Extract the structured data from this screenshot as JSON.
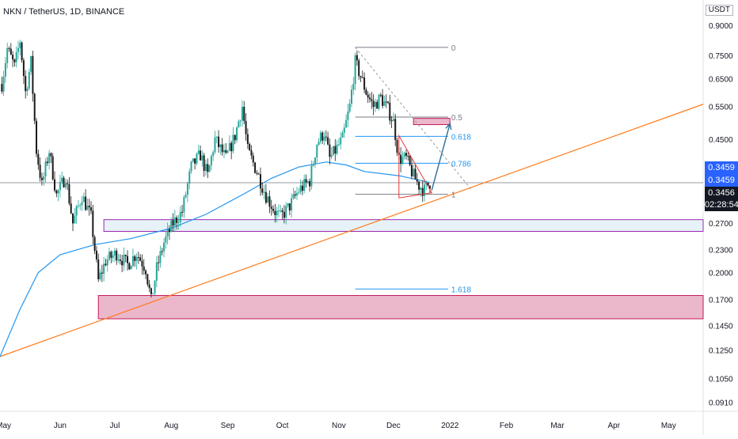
{
  "header": {
    "symbol": "NKN / TetherUS, 1D, BINANCE",
    "unit": "USDT"
  },
  "price_tags": {
    "ma": "0.3459",
    "ma2": "0.3459",
    "last": "0.3456",
    "countdown": "02:28:54"
  },
  "colors": {
    "up": "#26a69a",
    "down": "#000000",
    "candle": "#1a1a1a",
    "ma": "#2196f3",
    "trend": "#ff7a18",
    "fib": "#787b86",
    "fib_blue": "#2196f3",
    "support_zone_fill": "#e6f2f7",
    "support_zone_stroke": "#9c27b0",
    "demand_zone_fill": "#ebb8cb",
    "demand_zone_stroke": "#c2185b",
    "target_fill": "#ebb8cb",
    "arrow": "#2b6f9c",
    "triangle": "#e53935",
    "tag_blue": "#2962ff",
    "tag_black": "#131722"
  },
  "chart_data": {
    "type": "candlestick",
    "title": "NKN / TetherUS, 1D, BINANCE",
    "yscale": "log",
    "ylim": [
      0.086,
      1.05
    ],
    "xlim": [
      "2021-04-29",
      "2022-05-20"
    ],
    "y_ticks": [
      "0.9000",
      "0.7500",
      "0.6500",
      "0.5500",
      "0.4500",
      "0.3459",
      "0.2700",
      "0.2300",
      "0.2000",
      "0.1700",
      "0.1450",
      "0.1250",
      "0.1050",
      "0.0910"
    ],
    "y_tick_values": [
      0.9,
      0.75,
      0.65,
      0.55,
      0.45,
      0.3459,
      0.27,
      0.23,
      0.2,
      0.17,
      0.145,
      0.125,
      0.105,
      0.091
    ],
    "x_ticks": [
      {
        "label": "May",
        "date": "2021-05-01"
      },
      {
        "label": "Jun",
        "date": "2021-06-01"
      },
      {
        "label": "Jul",
        "date": "2021-07-01"
      },
      {
        "label": "Aug",
        "date": "2021-08-01"
      },
      {
        "label": "Sep",
        "date": "2021-09-01"
      },
      {
        "label": "Oct",
        "date": "2021-10-01"
      },
      {
        "label": "Nov",
        "date": "2021-11-01"
      },
      {
        "label": "Dec",
        "date": "2021-12-01"
      },
      {
        "label": "2022",
        "date": "2022-01-01"
      },
      {
        "label": "Feb",
        "date": "2022-02-01"
      },
      {
        "label": "Mar",
        "date": "2022-03-01"
      },
      {
        "label": "Apr",
        "date": "2022-04-01"
      },
      {
        "label": "May",
        "date": "2022-05-01"
      }
    ],
    "price_path": [
      [
        "2021-04-30",
        0.63
      ],
      [
        "2021-05-03",
        0.78
      ],
      [
        "2021-05-07",
        0.7
      ],
      [
        "2021-05-10",
        0.82
      ],
      [
        "2021-05-13",
        0.6
      ],
      [
        "2021-05-16",
        0.72
      ],
      [
        "2021-05-19",
        0.42
      ],
      [
        "2021-05-22",
        0.34
      ],
      [
        "2021-05-26",
        0.42
      ],
      [
        "2021-05-30",
        0.32
      ],
      [
        "2021-06-04",
        0.36
      ],
      [
        "2021-06-08",
        0.27
      ],
      [
        "2021-06-13",
        0.32
      ],
      [
        "2021-06-18",
        0.28
      ],
      [
        "2021-06-22",
        0.19
      ],
      [
        "2021-06-26",
        0.215
      ],
      [
        "2021-07-02",
        0.225
      ],
      [
        "2021-07-08",
        0.21
      ],
      [
        "2021-07-13",
        0.225
      ],
      [
        "2021-07-18",
        0.205
      ],
      [
        "2021-07-21",
        0.168
      ],
      [
        "2021-07-24",
        0.205
      ],
      [
        "2021-07-28",
        0.24
      ],
      [
        "2021-08-02",
        0.27
      ],
      [
        "2021-08-07",
        0.29
      ],
      [
        "2021-08-12",
        0.38
      ],
      [
        "2021-08-17",
        0.41
      ],
      [
        "2021-08-21",
        0.36
      ],
      [
        "2021-08-25",
        0.45
      ],
      [
        "2021-08-31",
        0.4
      ],
      [
        "2021-09-05",
        0.46
      ],
      [
        "2021-09-09",
        0.55
      ],
      [
        "2021-09-12",
        0.42
      ],
      [
        "2021-09-17",
        0.37
      ],
      [
        "2021-09-22",
        0.32
      ],
      [
        "2021-09-27",
        0.29
      ],
      [
        "2021-09-30",
        0.28
      ],
      [
        "2021-10-05",
        0.3
      ],
      [
        "2021-10-10",
        0.33
      ],
      [
        "2021-10-16",
        0.35
      ],
      [
        "2021-10-20",
        0.44
      ],
      [
        "2021-10-24",
        0.47
      ],
      [
        "2021-10-27",
        0.4
      ],
      [
        "2021-10-30",
        0.42
      ],
      [
        "2021-11-03",
        0.45
      ],
      [
        "2021-11-07",
        0.55
      ],
      [
        "2021-11-10",
        0.72
      ],
      [
        "2021-11-13",
        0.66
      ],
      [
        "2021-11-16",
        0.6
      ],
      [
        "2021-11-20",
        0.55
      ],
      [
        "2021-11-24",
        0.58
      ],
      [
        "2021-11-28",
        0.54
      ],
      [
        "2021-12-01",
        0.5
      ],
      [
        "2021-12-04",
        0.4
      ],
      [
        "2021-12-08",
        0.4
      ],
      [
        "2021-12-12",
        0.36
      ],
      [
        "2021-12-15",
        0.34
      ],
      [
        "2021-12-18",
        0.33
      ],
      [
        "2021-12-21",
        0.3456
      ]
    ],
    "ma_path": [
      [
        "2021-04-29",
        0.12
      ],
      [
        "2021-05-10",
        0.16
      ],
      [
        "2021-05-20",
        0.2
      ],
      [
        "2021-06-01",
        0.223
      ],
      [
        "2021-06-20",
        0.237
      ],
      [
        "2021-07-10",
        0.246
      ],
      [
        "2021-08-01",
        0.262
      ],
      [
        "2021-08-20",
        0.285
      ],
      [
        "2021-09-10",
        0.323
      ],
      [
        "2021-09-25",
        0.355
      ],
      [
        "2021-10-10",
        0.38
      ],
      [
        "2021-10-25",
        0.392
      ],
      [
        "2021-11-05",
        0.385
      ],
      [
        "2021-11-15",
        0.37
      ],
      [
        "2021-12-05",
        0.36
      ],
      [
        "2021-12-21",
        0.3459
      ]
    ],
    "trendline": {
      "from": [
        "2021-04-29",
        0.12
      ],
      "to": [
        "2022-05-20",
        0.557
      ]
    },
    "horizontal_line": 0.3456,
    "fibonacci": {
      "x_start": "2021-11-10",
      "x_end": "2021-12-31",
      "levels": [
        {
          "label": "0",
          "value": 0.787
        },
        {
          "label": "0.5",
          "value": 0.515
        },
        {
          "label": "0.618",
          "value": 0.458
        },
        {
          "label": "0.786",
          "value": 0.389
        },
        {
          "label": "1",
          "value": 0.322
        },
        {
          "label": "1.618",
          "value": 0.181
        }
      ]
    },
    "zones": [
      {
        "name": "support",
        "from": "2021-06-25",
        "to": "2022-05-20",
        "low": 0.257,
        "high": 0.276
      },
      {
        "name": "demand",
        "from": "2021-06-22",
        "to": "2022-05-20",
        "low": 0.151,
        "high": 0.174
      },
      {
        "name": "target",
        "from": "2021-12-12",
        "to": "2022-01-01",
        "low": 0.492,
        "high": 0.511
      }
    ],
    "triangle": [
      [
        "2021-12-04",
        0.46
      ],
      [
        "2021-12-04",
        0.315
      ],
      [
        "2021-12-22",
        0.325
      ]
    ],
    "arrow": {
      "from": [
        "2021-12-22",
        0.33
      ],
      "to": [
        "2022-01-01",
        0.495
      ]
    },
    "fib_diagonal": {
      "from": [
        "2021-11-10",
        0.787
      ],
      "to": [
        "2022-01-13",
        0.33
      ]
    }
  }
}
